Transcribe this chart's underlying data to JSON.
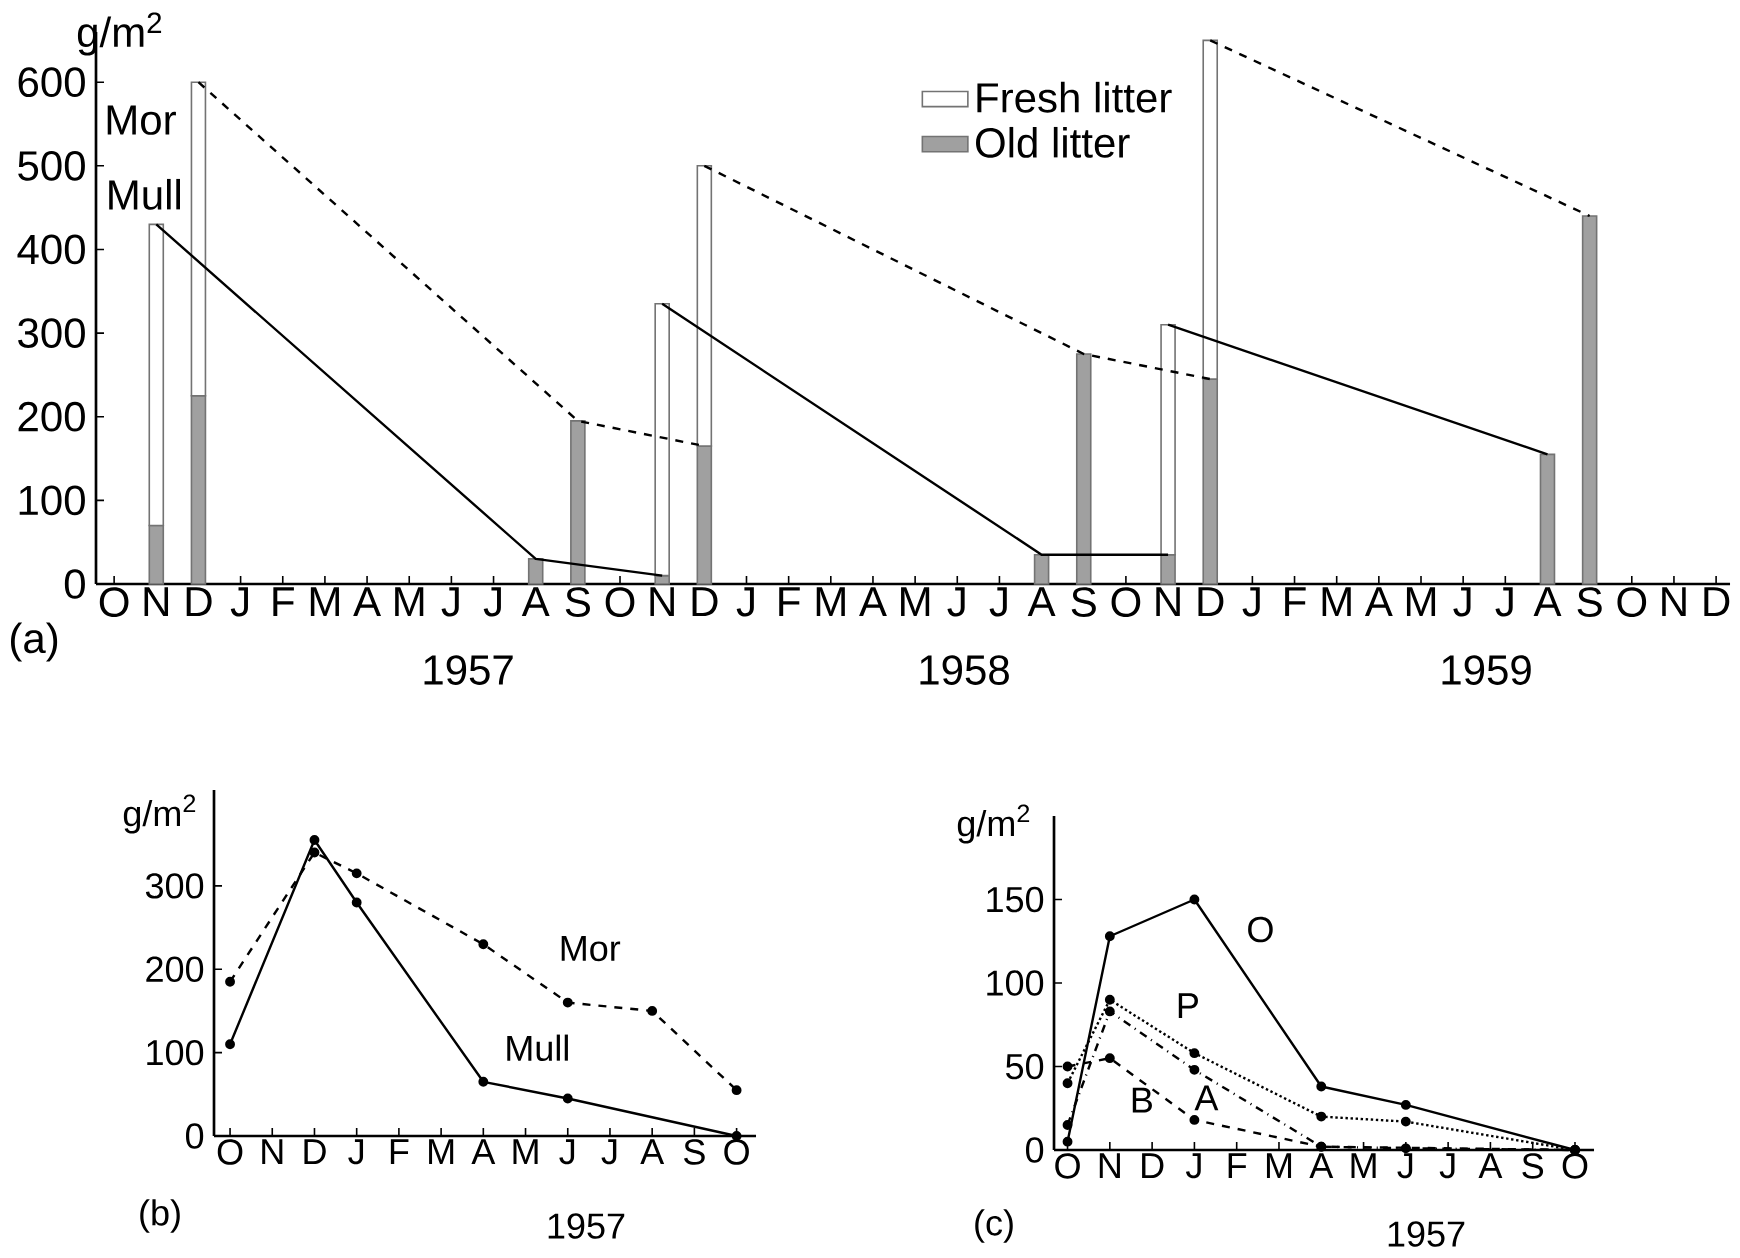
{
  "chart_data": [
    {
      "type": "bar",
      "stacked": true,
      "ylabel": "g/m$^{2}$",
      "legend": "top",
      "ylim": [
        0,
        660
      ],
      "yticks": [
        0,
        100,
        200,
        300,
        400,
        500,
        600
      ],
      "categories": [
        "O",
        "N",
        "D",
        "J",
        "F",
        "M",
        "A",
        "M",
        "J",
        "J",
        "A",
        "S",
        "O",
        "N",
        "D",
        "J",
        "F",
        "M",
        "A",
        "M",
        "J",
        "J",
        "A",
        "S",
        "O",
        "N",
        "D",
        "J",
        "F",
        "M",
        "A",
        "M",
        "J",
        "J",
        "A",
        "S",
        "O",
        "N",
        "D"
      ],
      "series": [
        {
          "name": "Old litter",
          "color": "#a0a0a0",
          "values": [
            null,
            70,
            225,
            null,
            null,
            null,
            null,
            null,
            null,
            null,
            30,
            195,
            null,
            10,
            165,
            null,
            null,
            null,
            null,
            null,
            null,
            null,
            35,
            275,
            null,
            35,
            245,
            null,
            null,
            null,
            null,
            null,
            null,
            null,
            155,
            440,
            null,
            null,
            null
          ]
        },
        {
          "name": "Fresh litter",
          "color": "#ffffff",
          "values": [
            null,
            360,
            375,
            null,
            null,
            null,
            null,
            null,
            null,
            null,
            null,
            null,
            null,
            325,
            335,
            null,
            null,
            null,
            null,
            null,
            null,
            null,
            null,
            null,
            null,
            275,
            405,
            null,
            null,
            null,
            null,
            null,
            null,
            null,
            null,
            null,
            null,
            null,
            null
          ]
        },
        {
          "name": "Mor",
          "type": "line",
          "line_style": "dashed",
          "color": "#000000",
          "values": [
            null,
            null,
            600,
            null,
            null,
            null,
            null,
            null,
            null,
            null,
            null,
            195,
            null,
            null,
            165,
            null,
            null,
            null,
            null,
            null,
            null,
            null,
            null,
            null,
            null,
            null,
            null,
            null,
            null,
            null,
            null,
            null,
            null,
            null,
            null,
            null,
            null,
            null,
            null
          ]
        },
        {
          "type": "line",
          "line_style": "dashed",
          "color": "#000000",
          "values": [
            null,
            null,
            null,
            null,
            null,
            null,
            null,
            null,
            null,
            null,
            null,
            null,
            null,
            null,
            500,
            null,
            null,
            null,
            null,
            null,
            null,
            null,
            null,
            275,
            null,
            null,
            245,
            null,
            null,
            null,
            null,
            null,
            null,
            null,
            null,
            null,
            null,
            null,
            null
          ]
        },
        {
          "type": "line",
          "line_style": "dashed",
          "color": "#000000",
          "values": [
            null,
            null,
            null,
            null,
            null,
            null,
            null,
            null,
            null,
            null,
            null,
            null,
            null,
            null,
            null,
            null,
            null,
            null,
            null,
            null,
            null,
            null,
            null,
            null,
            null,
            null,
            650,
            null,
            null,
            null,
            null,
            null,
            null,
            null,
            null,
            440,
            null,
            null,
            null
          ]
        },
        {
          "name": "Mull",
          "type": "line",
          "line_style": "solid",
          "color": "#000000",
          "values": [
            null,
            430,
            null,
            null,
            null,
            null,
            null,
            null,
            null,
            null,
            30,
            null,
            null,
            10,
            null,
            null,
            null,
            null,
            null,
            null,
            null,
            null,
            null,
            null,
            null,
            null,
            null,
            null,
            null,
            null,
            null,
            null,
            null,
            null,
            null,
            null,
            null,
            null,
            null
          ]
        },
        {
          "type": "line",
          "line_style": "solid",
          "color": "#000000",
          "values": [
            null,
            null,
            null,
            null,
            null,
            null,
            null,
            null,
            null,
            null,
            null,
            null,
            null,
            335,
            null,
            null,
            null,
            null,
            null,
            null,
            null,
            null,
            35,
            null,
            null,
            35,
            null,
            null,
            null,
            null,
            null,
            null,
            null,
            null,
            null,
            null,
            null,
            null,
            null
          ]
        },
        {
          "type": "line",
          "line_style": "solid",
          "color": "#000000",
          "values": [
            null,
            null,
            null,
            null,
            null,
            null,
            null,
            null,
            null,
            null,
            null,
            null,
            null,
            null,
            null,
            null,
            null,
            null,
            null,
            null,
            null,
            null,
            null,
            null,
            null,
            310,
            null,
            null,
            null,
            null,
            null,
            null,
            null,
            null,
            155,
            null,
            null,
            null,
            null
          ]
        }
      ],
      "annotations": [
        "1957",
        "1958",
        "1959",
        "(a)"
      ]
    },
    {
      "type": "line",
      "ylabel": "g/m$^{2}$",
      "marker": "circle",
      "ylim": [
        0,
        415
      ],
      "yticks": [
        0,
        100,
        200,
        300
      ],
      "categories": [
        "O",
        "N",
        "D",
        "J",
        "F",
        "M",
        "A",
        "M",
        "J",
        "J",
        "A",
        "S",
        "O"
      ],
      "series": [
        {
          "name": "Mor",
          "line_style": "dashed",
          "color": "#000000",
          "values": [
            185,
            null,
            340,
            315,
            null,
            null,
            230,
            null,
            160,
            null,
            150,
            null,
            55
          ]
        },
        {
          "name": "Mull",
          "line_style": "solid",
          "color": "#000000",
          "values": [
            110,
            null,
            355,
            280,
            null,
            null,
            65,
            null,
            45,
            null,
            null,
            null,
            0
          ]
        }
      ],
      "annotations": [
        "1957",
        "(b)"
      ]
    },
    {
      "type": "line",
      "ylabel": "g/m$^{2}$",
      "marker": "circle",
      "ylim": [
        0,
        200
      ],
      "yticks": [
        0,
        50,
        100,
        150
      ],
      "categories": [
        "O",
        "N",
        "D",
        "J",
        "F",
        "M",
        "A",
        "M",
        "J",
        "J",
        "A",
        "S",
        "O"
      ],
      "series": [
        {
          "name": "O",
          "line_style": "solid",
          "color": "#000000",
          "values": [
            5,
            128,
            null,
            150,
            null,
            null,
            38,
            null,
            27,
            null,
            null,
            null,
            0
          ]
        },
        {
          "name": "P",
          "line_style": "dotted",
          "color": "#000000",
          "values": [
            40,
            90,
            null,
            58,
            null,
            null,
            20,
            null,
            17,
            null,
            null,
            null,
            0
          ]
        },
        {
          "name": "A",
          "line_style": "dashdot",
          "color": "#000000",
          "values": [
            15,
            83,
            null,
            48,
            null,
            null,
            2,
            null,
            1,
            null,
            null,
            null,
            0
          ]
        },
        {
          "name": "B",
          "line_style": "dashed",
          "color": "#000000",
          "values": [
            50,
            55,
            null,
            18,
            null,
            null,
            2,
            null,
            null,
            null,
            null,
            null,
            0
          ]
        }
      ],
      "annotations": [
        "1957",
        "(c)"
      ]
    }
  ]
}
